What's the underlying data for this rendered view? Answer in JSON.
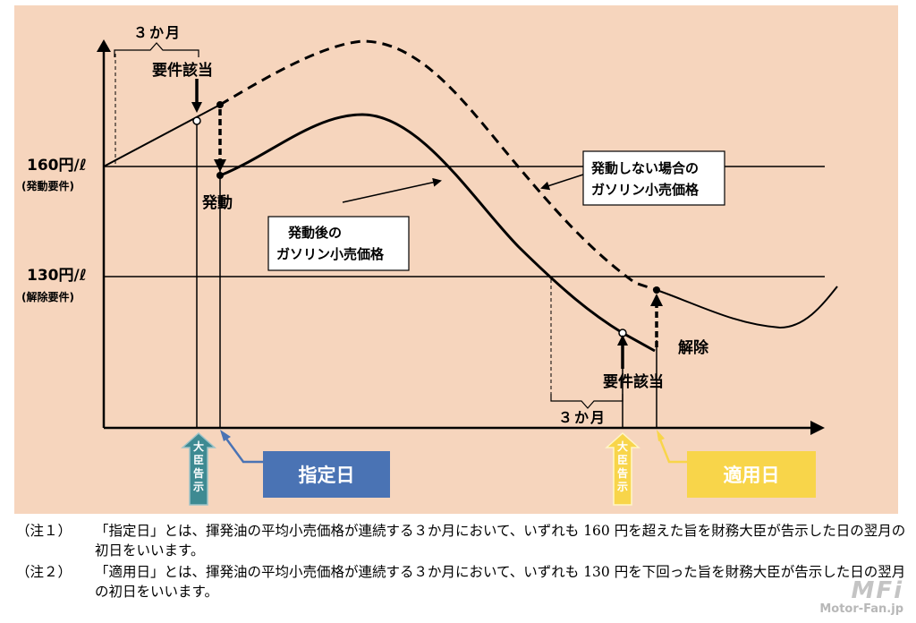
{
  "diagram": {
    "label_3months_top": "３か月",
    "label_requirement_top": "要件該当",
    "label_160": "160円/ℓ",
    "label_160_sub": "(発動要件)",
    "label_activation": "発動",
    "box_no_trigger": {
      "line1": "発動しない場合の",
      "line2": "ガソリン小売価格"
    },
    "box_after_trigger": {
      "line1": "発動後の",
      "line2": "ガソリン小売価格"
    },
    "label_130": "130円/ℓ",
    "label_130_sub": "(解除要件)",
    "label_release": "解除",
    "label_requirement_bottom": "要件該当",
    "label_3months_bottom": "３か月",
    "minister_notice_left": "大臣告示",
    "minister_notice_right": "大臣告示",
    "designated_day": "指定日",
    "application_day": "適用日",
    "colors": {
      "background": "#f6d5bd",
      "teal_arrow": "#3e8a92",
      "blue_box": "#4a73b4",
      "yellow": "#f8d54a"
    }
  },
  "notes": [
    {
      "label": "（注１）",
      "text": "「指定日」とは、揮発油の平均小売価格が連続する３か月において、いずれも 160 円を超えた旨を財務大臣が告示した日の翌月の初日をいいます。"
    },
    {
      "label": "（注２）",
      "text": "「適用日」とは、揮発油の平均小売価格が連続する３か月において、いずれも 130 円を下回った旨を財務大臣が告示した日の翌月の初日をいいます。"
    }
  ],
  "watermark": {
    "logo": "MFi",
    "site": "Motor-Fan.jp"
  }
}
